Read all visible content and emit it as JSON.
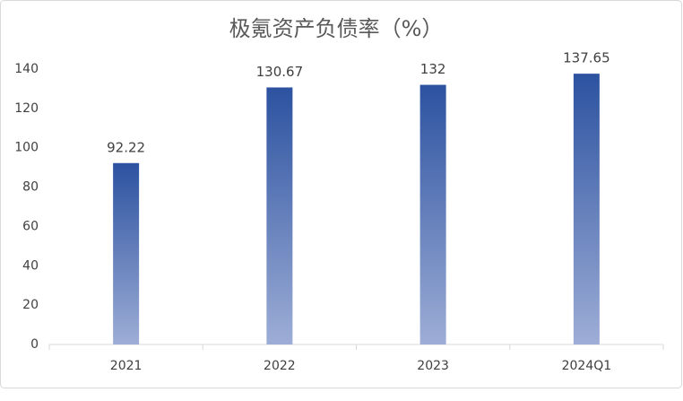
{
  "chart_data": {
    "type": "bar",
    "title": "极氪资产负债率（%）",
    "categories": [
      "2021",
      "2022",
      "2023",
      "2024Q1"
    ],
    "values": [
      92.22,
      130.67,
      132,
      137.65
    ],
    "colors": [
      "#2c52a0",
      "#9dadd6"
    ],
    "ylim": [
      0,
      140
    ],
    "yticks": [
      0,
      20,
      40,
      60,
      80,
      100,
      120,
      140
    ],
    "grid": false
  }
}
